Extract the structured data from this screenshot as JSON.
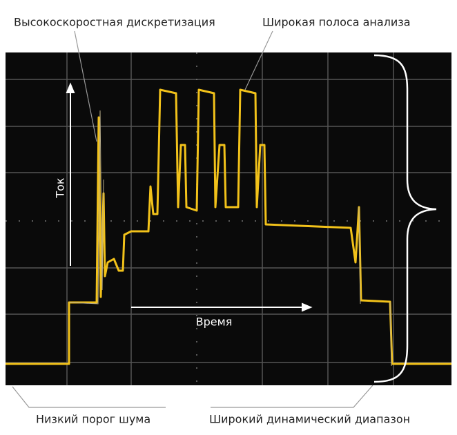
{
  "callouts": {
    "top_left": "Высокоскоростная дискретизация",
    "top_right": "Широкая полоса анализа",
    "bottom_left": "Низкий порог шума",
    "bottom_right": "Широкий динамический диапазон"
  },
  "axes": {
    "vertical": "Ток",
    "horizontal": "Время"
  }
}
